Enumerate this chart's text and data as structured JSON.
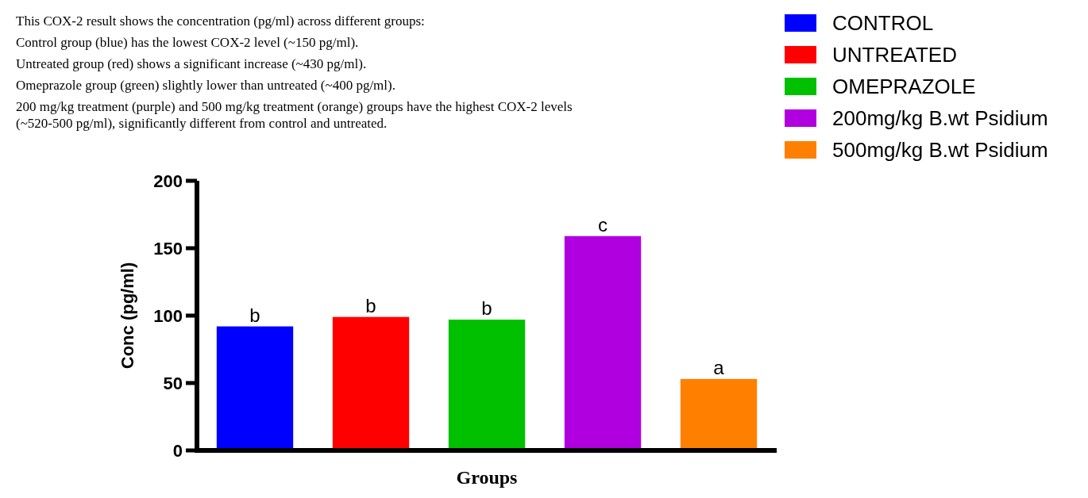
{
  "chart_data": {
    "type": "bar",
    "xlabel": "Groups",
    "ylabel": "Conc (pg/ml)",
    "categories": [
      null,
      null,
      null,
      null,
      null
    ],
    "series": [
      {
        "name": "CONTROL",
        "color": "#0000ff",
        "values": [
          92,
          null,
          null,
          null,
          null
        ]
      },
      {
        "name": "UNTREATED",
        "color": "#ff0000",
        "values": [
          null,
          99,
          null,
          null,
          null
        ]
      },
      {
        "name": "OMEPRAZOLE",
        "color": "#00c000",
        "values": [
          null,
          null,
          97,
          null,
          null
        ]
      },
      {
        "name": "200mg/kg B.wt Psidium",
        "color": "#b000e0",
        "values": [
          null,
          null,
          null,
          159,
          null
        ]
      },
      {
        "name": "500mg/kg B.wt Psidium",
        "color": "#ff8000",
        "values": [
          null,
          null,
          null,
          null,
          53
        ]
      }
    ],
    "ylim": [
      0,
      200
    ],
    "yticks": [
      0,
      50,
      100,
      150,
      200
    ],
    "grid": false,
    "legend": "top right",
    "annotations": [
      {
        "text": "b",
        "y": 92
      },
      {
        "text": "b",
        "y": 99
      },
      {
        "text": "b",
        "y": 97
      },
      {
        "text": "c",
        "y": 159
      },
      {
        "text": "a",
        "y": 53
      },
      "This COX-2 result shows the concentration (pg/ml) across different groups:",
      "Control group (blue) has the lowest COX-2 level (~150 pg/ml).",
      "Untreated group (red) shows a significant increase (~430 pg/ml).",
      "Omeprazole group (green) slightly lower than untreated (~400 pg/ml).",
      "200 mg/kg treatment (purple) and 500 mg/kg treatment (orange) groups have the highest COX-2 levels (~520-500 pg/ml), significantly different from control and untreated."
    ]
  }
}
